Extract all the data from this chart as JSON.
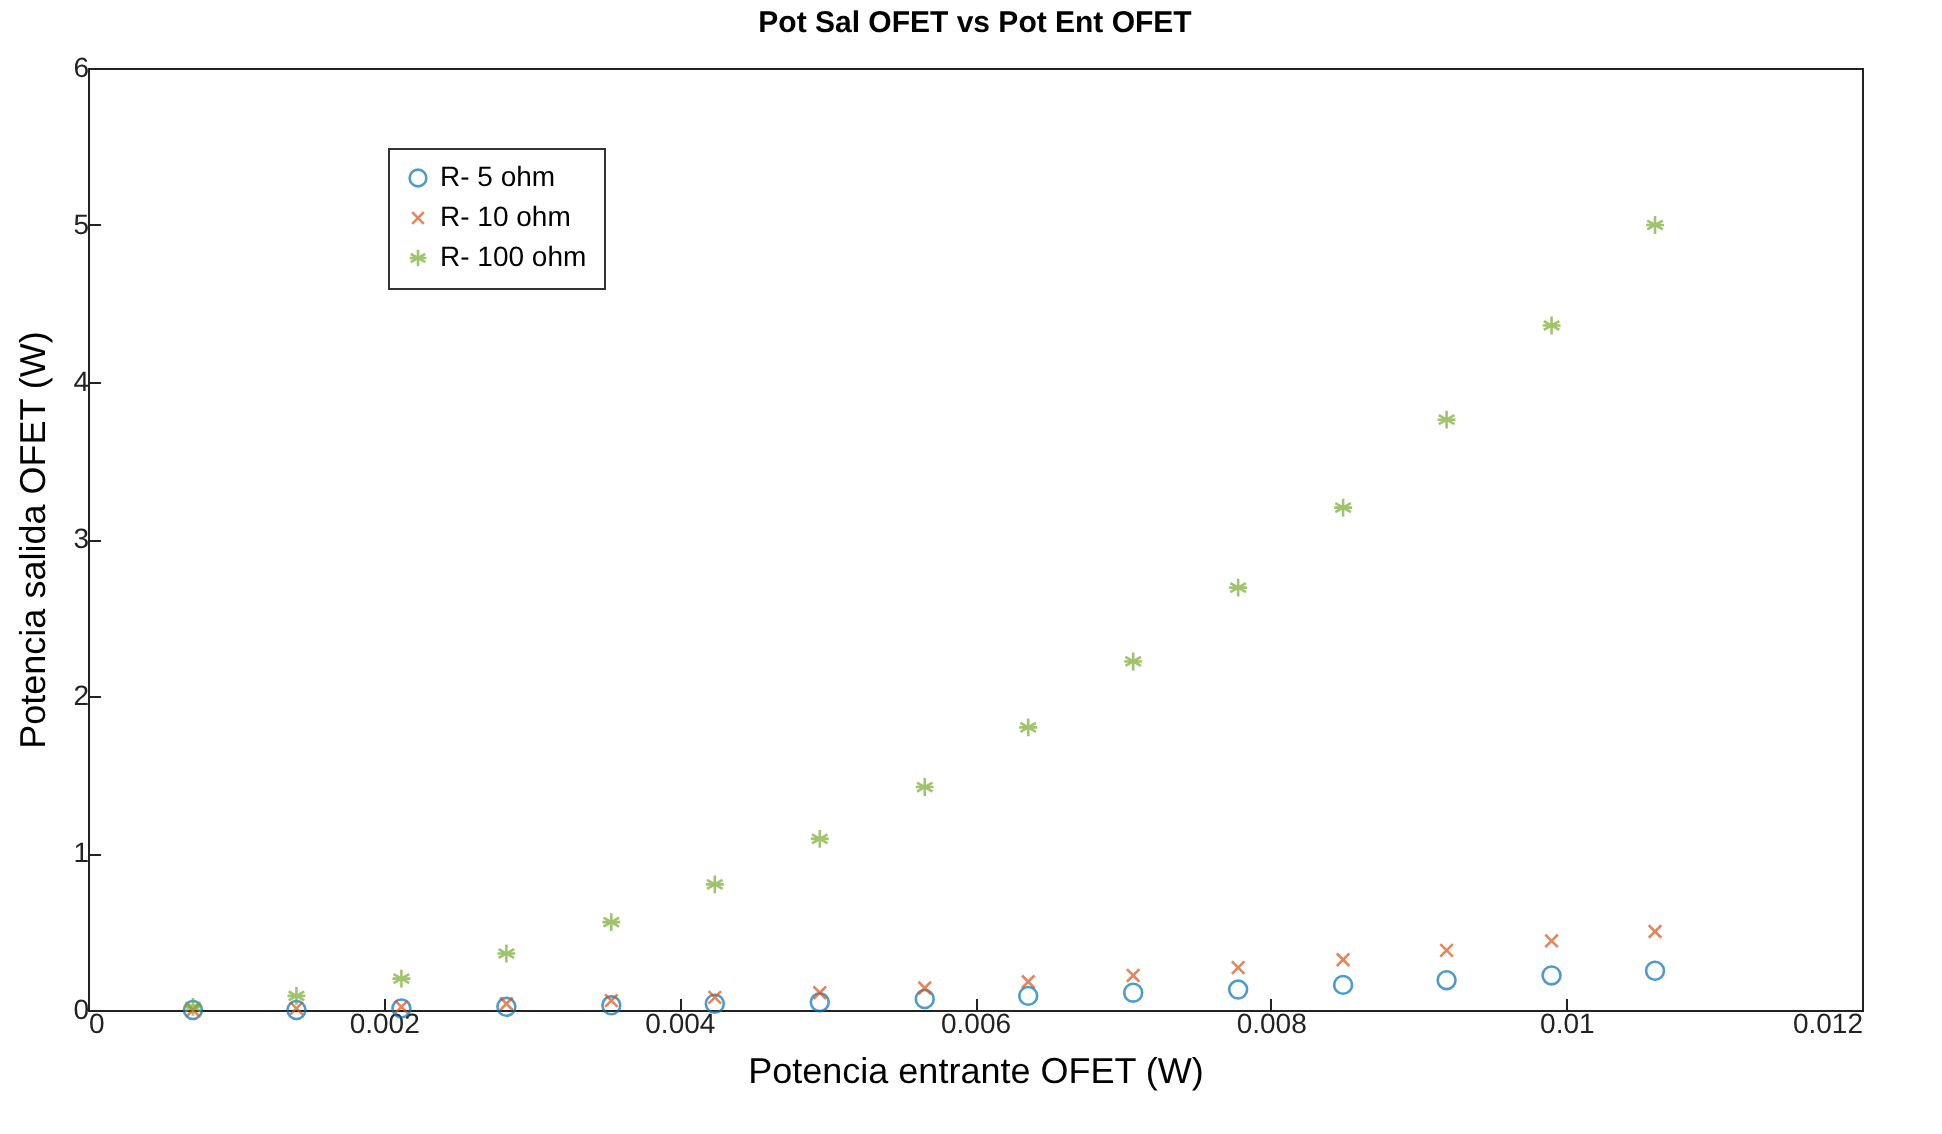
{
  "chart_data": {
    "type": "scatter",
    "title": "Pot Sal OFET vs Pot Ent OFET",
    "xlabel": "Potencia entrante OFET (W)",
    "ylabel": "Potencia salida OFET (W)",
    "x": [
      0.00071,
      0.00141,
      0.00212,
      0.00283,
      0.00354,
      0.00424,
      0.00495,
      0.00566,
      0.00636,
      0.00707,
      0.00778,
      0.00849,
      0.00919,
      0.0099,
      0.0106
    ],
    "series": [
      {
        "name": "R- 5 ohm",
        "color": "#0072bd",
        "marker": "circle",
        "values": [
          0,
          0,
          0.01,
          0.02,
          0.03,
          0.04,
          0.05,
          0.07,
          0.09,
          0.11,
          0.13,
          0.16,
          0.19,
          0.22,
          0.25
        ]
      },
      {
        "name": "R- 10 ohm",
        "color": "#d95319",
        "marker": "cross",
        "values": [
          0,
          0.01,
          0.02,
          0.04,
          0.06,
          0.08,
          0.11,
          0.14,
          0.18,
          0.22,
          0.27,
          0.32,
          0.38,
          0.44,
          0.5
        ]
      },
      {
        "name": "R- 100 ohm",
        "color": "#77ac30",
        "marker": "star",
        "values": [
          0.02,
          0.09,
          0.2,
          0.36,
          0.56,
          0.8,
          1.09,
          1.42,
          1.8,
          2.22,
          2.69,
          3.2,
          3.76,
          4.36,
          5.0
        ]
      }
    ],
    "xlim": [
      0,
      0.012
    ],
    "xticks": [
      0,
      0.002,
      0.004,
      0.006,
      0.008,
      0.01,
      0.012
    ],
    "ylim": [
      0,
      6
    ],
    "yticks": [
      0,
      1,
      2,
      3,
      4,
      5,
      6
    ],
    "grid": false,
    "legend": "top left"
  }
}
